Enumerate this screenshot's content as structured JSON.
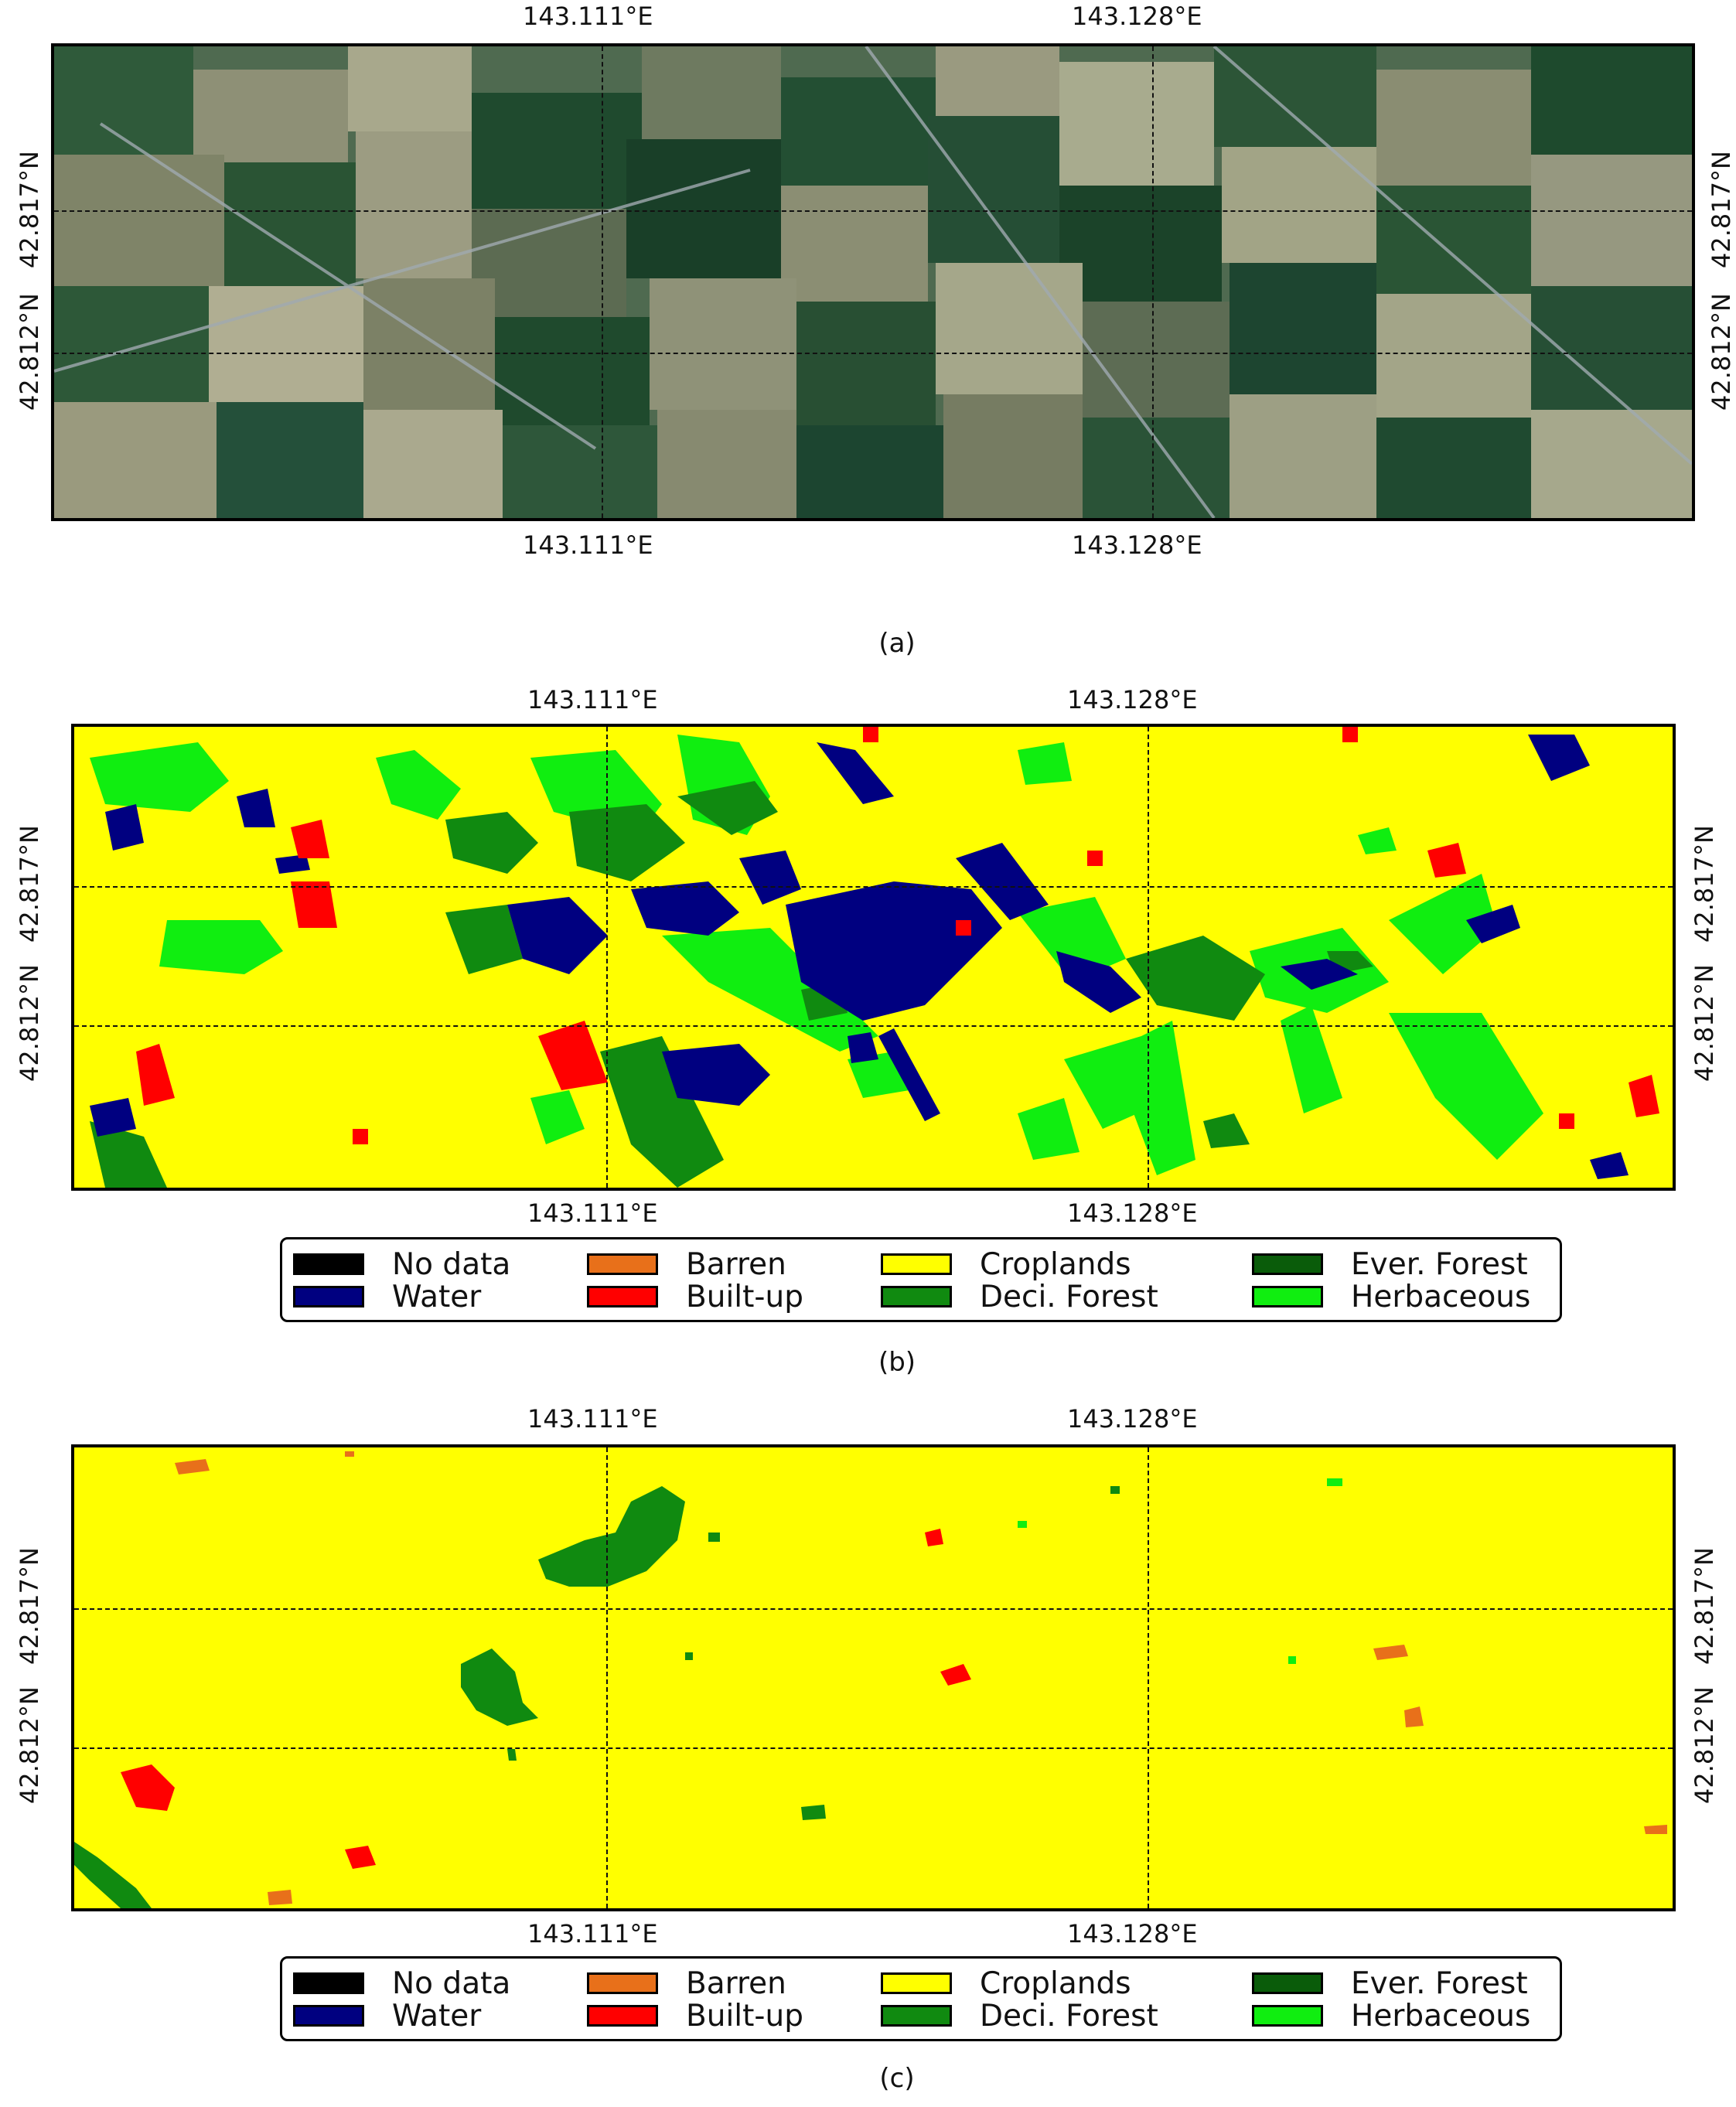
{
  "axis_ticks": {
    "lon": [
      "143.111°E",
      "143.128°E"
    ],
    "lat": [
      "42.817°N",
      "42.812°N"
    ]
  },
  "legend": {
    "items": [
      {
        "label": "No data",
        "color": "#000000"
      },
      {
        "label": "Water",
        "color": "#000080"
      },
      {
        "label": "Barren",
        "color": "#e8701a"
      },
      {
        "label": "Built-up",
        "color": "#ff0000"
      },
      {
        "label": "Croplands",
        "color": "#ffff00"
      },
      {
        "label": "Deci. Forest",
        "color": "#108a10"
      },
      {
        "label": "Ever. Forest",
        "color": "#0a5c0a"
      },
      {
        "label": "Herbaceous",
        "color": "#10ee10"
      }
    ]
  },
  "panels": [
    {
      "id": "a",
      "caption": "(a)",
      "type": "satellite image"
    },
    {
      "id": "b",
      "caption": "(b)",
      "type": "land cover classification"
    },
    {
      "id": "c",
      "caption": "(c)",
      "type": "land cover classification"
    }
  ]
}
